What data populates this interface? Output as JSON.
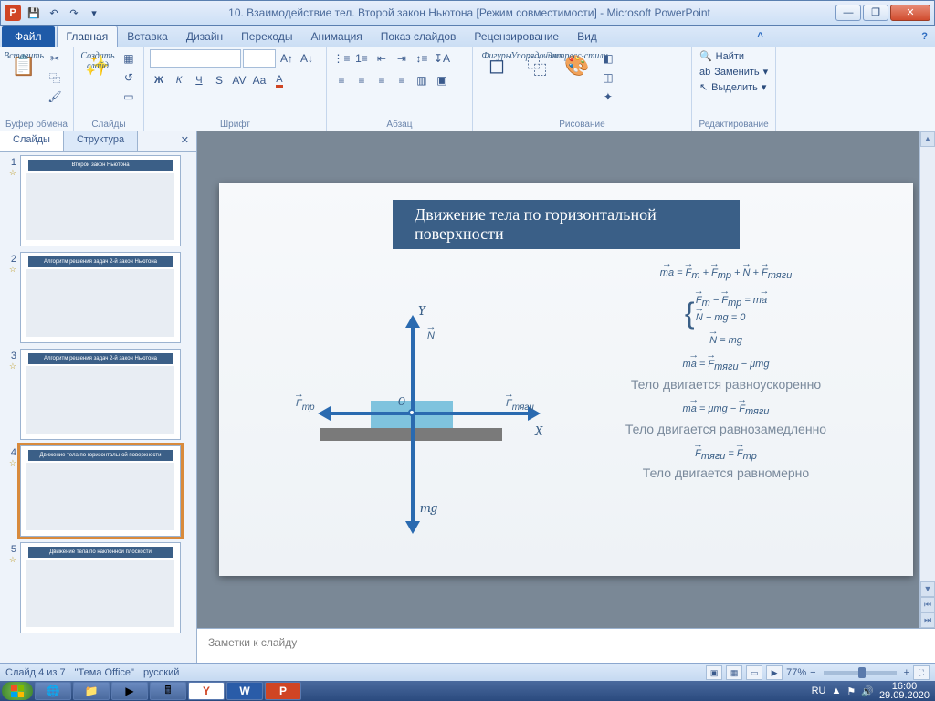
{
  "titlebar": {
    "app_badge": "P",
    "title": "10. Взаимодействие тел.  Второй закон Ньютона [Режим совместимости]  -  Microsoft PowerPoint"
  },
  "tabs": {
    "file": "Файл",
    "items": [
      "Главная",
      "Вставка",
      "Дизайн",
      "Переходы",
      "Анимация",
      "Показ слайдов",
      "Рецензирование",
      "Вид"
    ],
    "active_index": 0
  },
  "ribbon": {
    "clipboard": {
      "label": "Буфер обмена",
      "paste": "Вставить"
    },
    "slides": {
      "label": "Слайды",
      "create": "Создать\nслайд"
    },
    "font": {
      "label": "Шрифт",
      "name_placeholder": "",
      "size_placeholder": ""
    },
    "paragraph": {
      "label": "Абзац"
    },
    "drawing": {
      "label": "Рисование",
      "shapes": "Фигуры",
      "arrange": "Упорядочить",
      "styles": "Экспресс-стили"
    },
    "editing": {
      "label": "Редактирование",
      "find": "Найти",
      "replace": "Заменить",
      "select": "Выделить"
    }
  },
  "panel": {
    "tab_slides": "Слайды",
    "tab_outline": "Структура",
    "thumbs": [
      {
        "n": "1",
        "title": "Второй закон Ньютона"
      },
      {
        "n": "2",
        "title": "Алгоритм решения задач 2-й закон Ньютона"
      },
      {
        "n": "3",
        "title": "Алгоритм решения задач 2-й закон Ньютона"
      },
      {
        "n": "4",
        "title": "Движение тела по горизонтальной поверхности"
      },
      {
        "n": "5",
        "title": "Движение тела по наклонной плоскости"
      }
    ],
    "selected_index": 3
  },
  "slide": {
    "title": "Движение тела по горизонтальной поверхности",
    "labels": {
      "Y": "Y",
      "X": "X",
      "N": "N",
      "mg": "mg",
      "O": "O",
      "Ftr": "F",
      "Ftr_sub": "тр",
      "Ft": "F",
      "Ft_sub": "тяги"
    },
    "equations": {
      "eq1": "ma = Fт + Fтр + N + Fтяги",
      "sys1": "Fт − Fтр = ma",
      "sys2": "N − mg = 0",
      "eq2": "N = mg",
      "eq3": "ma = Fтяги − μmg",
      "txt3": "Тело двигается равноускоренно",
      "eq4": "ma = μmg − Fтяги",
      "txt4": "Тело двигается равнозамедленно",
      "eq5": "Fтяги = Fтр",
      "txt5": "Тело двигается равномерно"
    }
  },
  "notes": {
    "placeholder": "Заметки к слайду"
  },
  "status": {
    "slide": "Слайд 4 из 7",
    "theme": "\"Тема Office\"",
    "lang": "русский",
    "zoom": "77%"
  },
  "tray": {
    "lang": "RU",
    "time": "16:00",
    "date": "29.09.2020"
  }
}
